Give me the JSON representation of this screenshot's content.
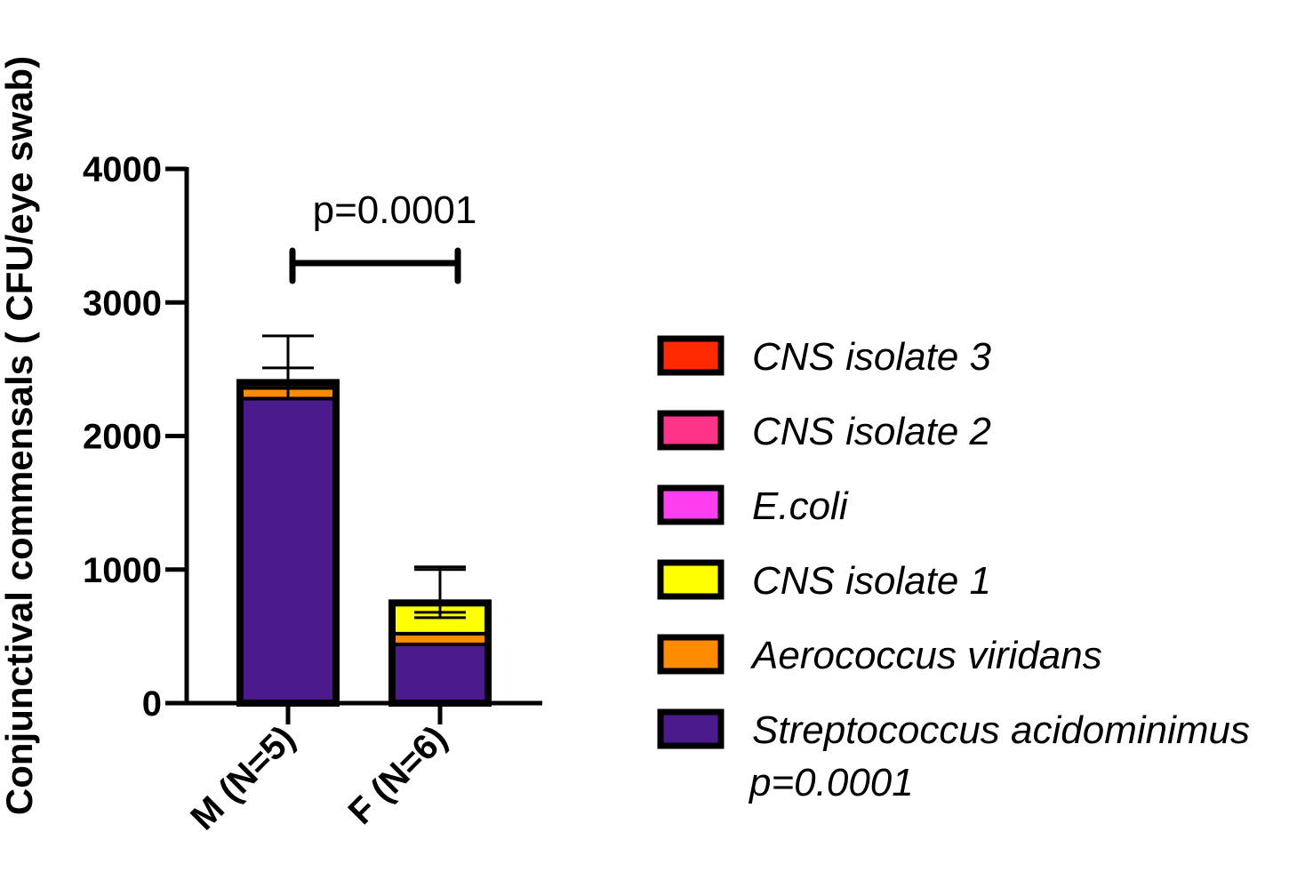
{
  "chart_data": {
    "type": "bar",
    "stacked": true,
    "ylabel": "Conjunctival commensals ( CFU/eye swab)",
    "xlabel": "",
    "ylim": [
      0,
      4000
    ],
    "yticks": [
      0,
      1000,
      2000,
      3000,
      4000
    ],
    "ytick_labels": [
      "0",
      "1000",
      "2000",
      "3000",
      "4000"
    ],
    "categories": [
      "M  (N=5)",
      "F (N=6)"
    ],
    "series": [
      {
        "name": "Streptococcus acidominimus",
        "color": "#4B1A8C",
        "values": [
          2280,
          440
        ]
      },
      {
        "name": "Aerococcus viridans",
        "color": "#FF8C00",
        "values": [
          80,
          80
        ]
      },
      {
        "name": "CNS isolate 1",
        "color": "#FFFF00",
        "values": [
          40,
          230
        ]
      },
      {
        "name": "E.coli",
        "color": "#FF3FF0",
        "values": [
          0,
          0
        ]
      },
      {
        "name": "CNS isolate 2",
        "color": "#FF3388",
        "values": [
          0,
          0
        ]
      },
      {
        "name": "CNS isolate 3",
        "color": "#FF2A00",
        "values": [
          0,
          0
        ]
      }
    ],
    "error_bars": [
      [
        {
          "center": 2280,
          "upper": 2510
        },
        {
          "center": 2360,
          "upper": 2750
        }
      ],
      [
        {
          "center": 640,
          "upper": 1000
        },
        {
          "center": 680,
          "upper": 1020
        }
      ]
    ],
    "significance": {
      "label": "p=0.0001",
      "from": 0,
      "to": 1,
      "y": 3300
    },
    "legend": {
      "position": "right",
      "entries": [
        {
          "label": "CNS isolate 3",
          "color": "#FF2A00"
        },
        {
          "label": "CNS isolate 2",
          "color": "#FF3388"
        },
        {
          "label": "E.coli",
          "color": "#FF3FF0"
        },
        {
          "label": "CNS isolate 1",
          "color": "#FFFF00"
        },
        {
          "label": "Aerococcus viridans",
          "color": "#FF8C00"
        },
        {
          "label": "Streptococcus acidominimus",
          "color": "#4B1A8C"
        }
      ],
      "extra_line": "p=0.0001"
    }
  }
}
